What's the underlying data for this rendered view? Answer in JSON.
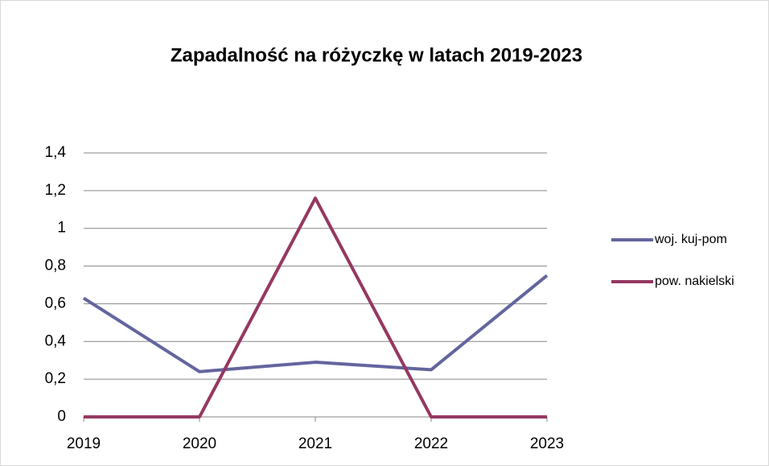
{
  "chart_data": {
    "type": "line",
    "title": "Zapadalność na różyczkę w latach 2019-2023",
    "categories": [
      "2019",
      "2020",
      "2021",
      "2022",
      "2023"
    ],
    "series": [
      {
        "name": "woj. kuj-pom",
        "color": "#64659e",
        "values": [
          0.63,
          0.24,
          0.29,
          0.25,
          0.75
        ]
      },
      {
        "name": "pow. nakielski",
        "color": "#953862",
        "values": [
          0,
          0,
          1.16,
          0,
          0
        ]
      }
    ],
    "ylim": [
      0,
      1.4
    ],
    "yticks": [
      0,
      {
        "value": 0.2,
        "label": "0,2"
      },
      {
        "value": 0.4,
        "label": "0,4"
      },
      {
        "value": 0.6,
        "label": "0,6"
      },
      {
        "value": 0.8,
        "label": "0,8"
      },
      1,
      {
        "value": 1.2,
        "label": "1,2"
      },
      {
        "value": 1.4,
        "label": "1,4"
      }
    ],
    "grid": true,
    "legend": "right"
  }
}
